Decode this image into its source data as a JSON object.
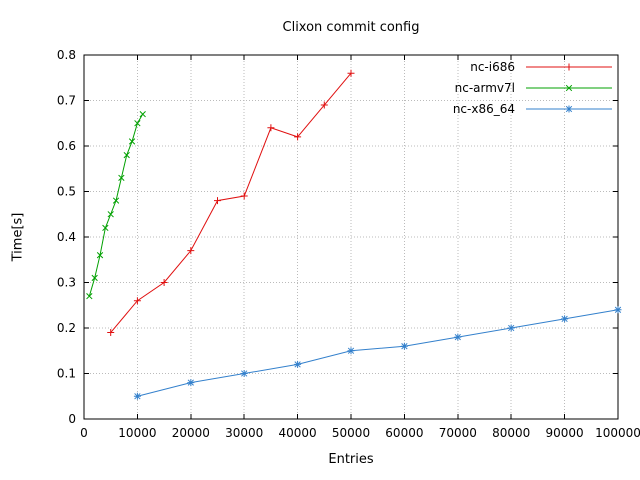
{
  "chart_data": {
    "type": "line",
    "title": "Clixon commit config",
    "xlabel": "Entries",
    "ylabel": "Time[s]",
    "xlim": [
      0,
      100000
    ],
    "ylim": [
      0,
      0.8
    ],
    "xticks": [
      0,
      10000,
      20000,
      30000,
      40000,
      50000,
      60000,
      70000,
      80000,
      90000,
      100000
    ],
    "xtick_labels": [
      "0",
      "10000",
      "20000",
      "30000",
      "40000",
      "50000",
      "60000",
      "70000",
      "80000",
      "90000",
      "100000"
    ],
    "yticks": [
      0,
      0.1,
      0.2,
      0.3,
      0.4,
      0.5,
      0.6,
      0.7,
      0.8
    ],
    "ytick_labels": [
      "0",
      "0.1",
      "0.2",
      "0.3",
      "0.4",
      "0.5",
      "0.6",
      "0.7",
      "0.8"
    ],
    "grid": true,
    "legend_position": "top-right",
    "series": [
      {
        "name": "nc-i686",
        "color": "#e01010",
        "marker": "plus",
        "x": [
          5000,
          10000,
          15000,
          20000,
          25000,
          30000,
          35000,
          40000,
          45000,
          50000
        ],
        "y": [
          0.19,
          0.26,
          0.3,
          0.37,
          0.48,
          0.49,
          0.64,
          0.62,
          0.69,
          0.76
        ]
      },
      {
        "name": "nc-armv7l",
        "color": "#00a000",
        "marker": "cross",
        "x": [
          1000,
          2000,
          3000,
          4000,
          5000,
          6000,
          7000,
          8000,
          9000,
          10000,
          11000
        ],
        "y": [
          0.27,
          0.31,
          0.36,
          0.42,
          0.45,
          0.48,
          0.53,
          0.58,
          0.61,
          0.65,
          0.67
        ]
      },
      {
        "name": "nc-x86_64",
        "color": "#3380cc",
        "marker": "asterisk",
        "x": [
          10000,
          20000,
          30000,
          40000,
          50000,
          60000,
          70000,
          80000,
          90000,
          100000
        ],
        "y": [
          0.05,
          0.08,
          0.1,
          0.12,
          0.15,
          0.16,
          0.18,
          0.2,
          0.22,
          0.24
        ]
      }
    ]
  },
  "colors": {
    "background": "#ffffff",
    "axis": "#000000",
    "grid": "#bbbbbb",
    "text": "#000000"
  }
}
